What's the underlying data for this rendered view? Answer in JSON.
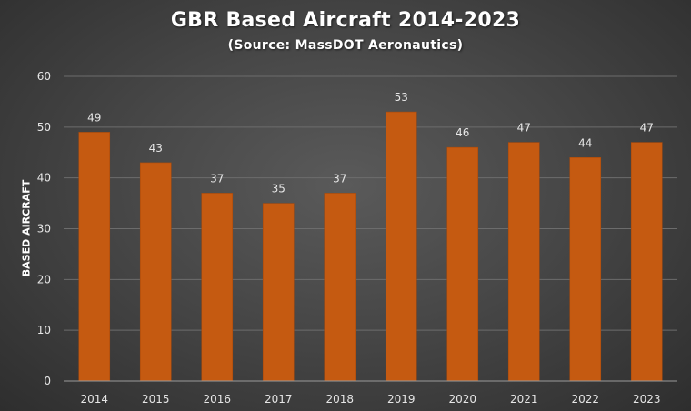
{
  "chart_data": {
    "type": "bar",
    "title": "GBR Based Aircraft 2014-2023",
    "subtitle": "(Source: MassDOT Aeronautics)",
    "xlabel": "",
    "ylabel": "BASED AIRCRAFT",
    "categories": [
      "2014",
      "2015",
      "2016",
      "2017",
      "2018",
      "2019",
      "2020",
      "2021",
      "2022",
      "2023"
    ],
    "values": [
      49,
      43,
      37,
      35,
      37,
      53,
      46,
      47,
      44,
      47
    ],
    "ylim": [
      0,
      60
    ],
    "yticks": [
      0,
      10,
      20,
      30,
      40,
      50,
      60
    ],
    "grid": true,
    "legend": "none",
    "data_labels": true
  },
  "colors": {
    "bar": "#c55a11",
    "bar_edge": "#a84a0c"
  }
}
